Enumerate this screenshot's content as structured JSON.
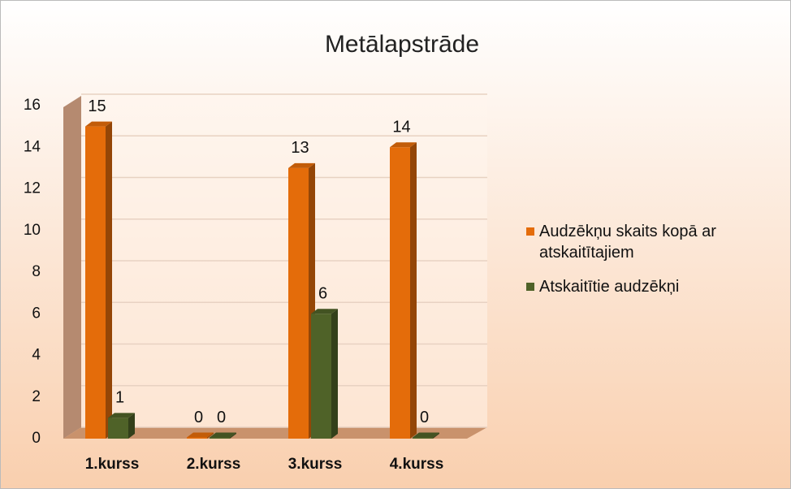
{
  "chart_data": {
    "type": "bar3d",
    "title": "Metālapstrāde",
    "categories": [
      "1.kurss",
      "2.kurss",
      "3.kurss",
      "4.kurss"
    ],
    "series": [
      {
        "name": "Audzēkņu skaits kopā ar atskaitītajiem",
        "color": "#e46c0a",
        "values": [
          15,
          0,
          13,
          14
        ]
      },
      {
        "name": "Atskaitītie audzēkņi",
        "color": "#4f6228",
        "values": [
          1,
          0,
          6,
          0
        ]
      }
    ],
    "ylim": [
      0,
      16
    ],
    "yticks": [
      0,
      2,
      4,
      6,
      8,
      10,
      12,
      14,
      16
    ],
    "grid": true,
    "legend": "right"
  }
}
